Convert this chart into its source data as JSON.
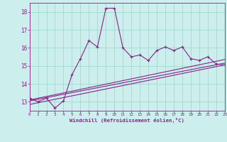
{
  "xlabel": "Windchill (Refroidissement éolien,°C)",
  "bg_color": "#cceeed",
  "grid_color": "#99ddcc",
  "line_color": "#882288",
  "xlim": [
    0,
    23
  ],
  "ylim": [
    12.5,
    18.5
  ],
  "yticks": [
    13,
    14,
    15,
    16,
    17,
    18
  ],
  "xticks": [
    0,
    1,
    2,
    3,
    4,
    5,
    6,
    7,
    8,
    9,
    10,
    11,
    12,
    13,
    14,
    15,
    16,
    17,
    18,
    19,
    20,
    21,
    22,
    23
  ],
  "main_x": [
    0,
    1,
    2,
    3,
    4,
    5,
    6,
    7,
    8,
    9,
    10,
    11,
    12,
    13,
    14,
    15,
    16,
    17,
    18,
    19,
    20,
    21,
    22,
    23
  ],
  "main_y": [
    13.2,
    13.0,
    13.2,
    12.65,
    13.05,
    14.5,
    15.4,
    16.4,
    16.05,
    18.2,
    18.2,
    16.0,
    15.5,
    15.6,
    15.3,
    15.85,
    16.05,
    15.85,
    16.05,
    15.4,
    15.3,
    15.5,
    15.1,
    15.05
  ],
  "line1_x": [
    0,
    23
  ],
  "line1_y": [
    13.1,
    15.35
  ],
  "line2_x": [
    0,
    23
  ],
  "line2_y": [
    13.05,
    15.15
  ],
  "line3_x": [
    0,
    23
  ],
  "line3_y": [
    12.85,
    15.05
  ]
}
